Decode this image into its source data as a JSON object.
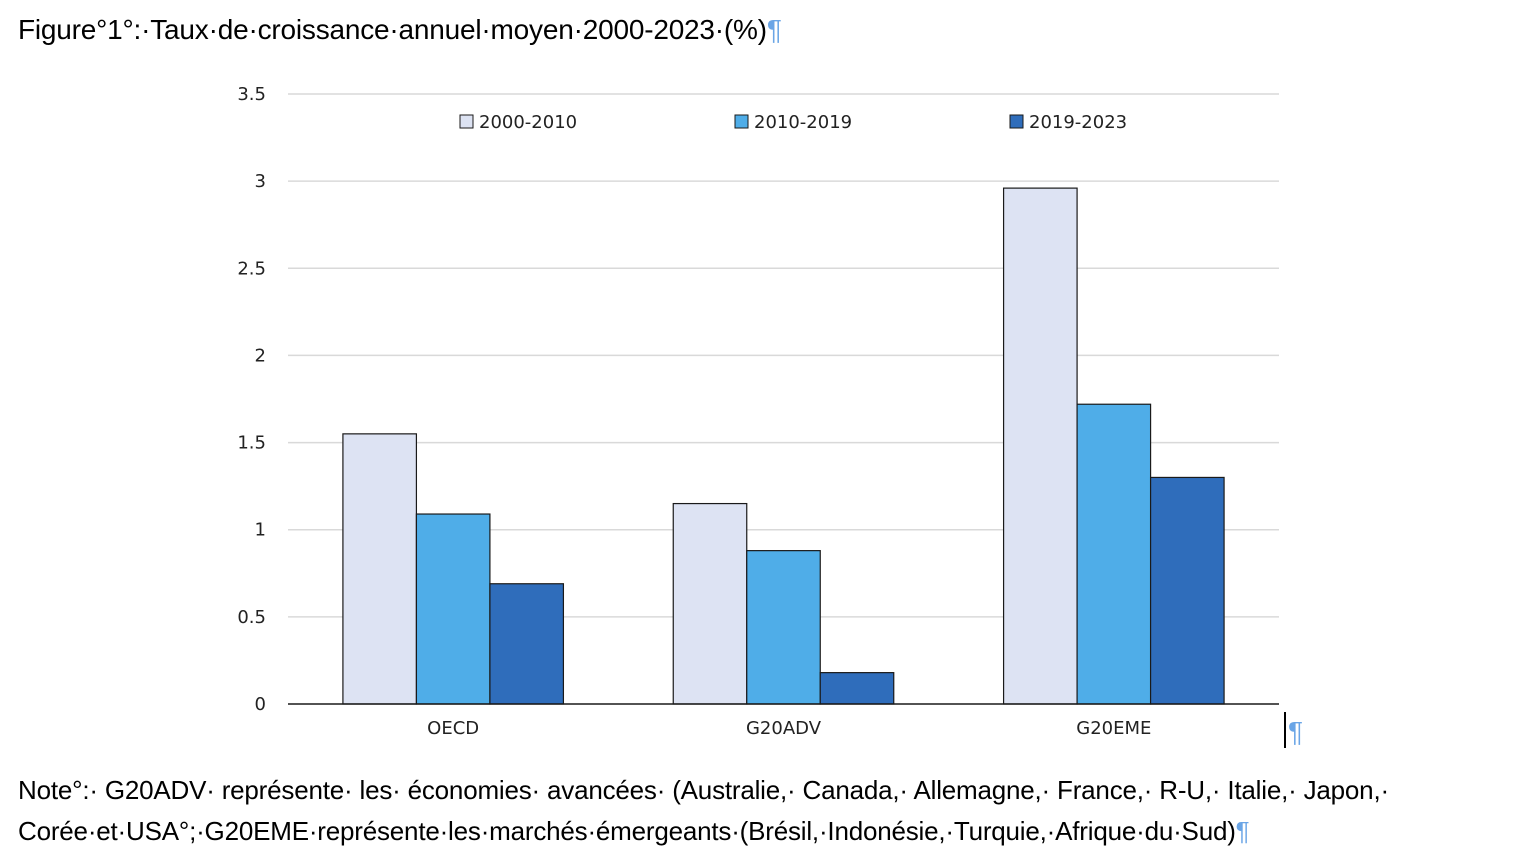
{
  "document": {
    "title": "Figure°1°:·Taux·de·croissance·annuel·moyen·2000-2023·(%)",
    "title_mark": "¶",
    "note_line1": "Note°:· G20ADV· représente· les· économies· avancées· (Australie,· Canada,· Allemagne,· France,· R-U,· Italie,· Japon,·",
    "note_line2": "Corée·et·USA°;·G20EME·représente·les·marchés·émergeants·(Brésil,·Indonésie,·Turquie,·Afrique·du·Sud)",
    "note_mark": "¶",
    "chart_mark": "¶"
  },
  "colors": {
    "series_2000_2010": "#dde3f3",
    "series_2010_2019": "#4fade8",
    "series_2019_2023": "#2f6dbb",
    "grid": "#d9d9d9",
    "pilcrow": "#6aa5e6"
  },
  "chart_data": {
    "type": "bar",
    "categories": [
      "OECD",
      "G20ADV",
      "G20EME"
    ],
    "series": [
      {
        "name": "2000-2010",
        "values": [
          1.55,
          1.15,
          2.96
        ]
      },
      {
        "name": "2010-2019",
        "values": [
          1.09,
          0.88,
          1.72
        ]
      },
      {
        "name": "2019-2023",
        "values": [
          0.69,
          0.18,
          1.3
        ]
      }
    ],
    "ylim": [
      0,
      3.5
    ],
    "yticks": [
      "0",
      "0.5",
      "1",
      "1.5",
      "2",
      "2.5",
      "3",
      "3.5"
    ],
    "grid": true,
    "legend_position": "top"
  }
}
